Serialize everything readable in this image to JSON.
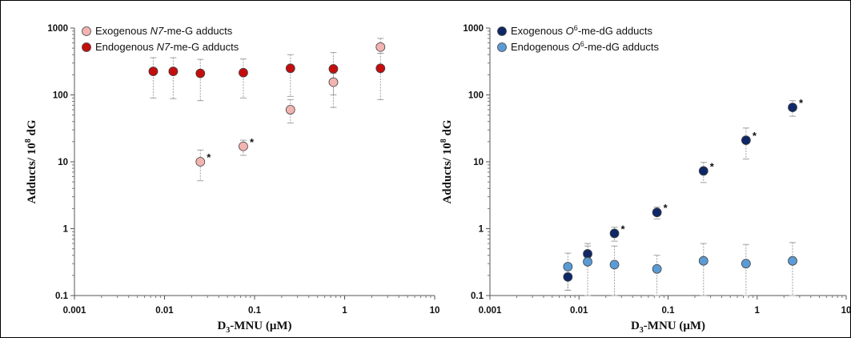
{
  "colors": {
    "exo_n7": "#f2b4b0",
    "endo_n7": "#c40d0d",
    "exo_o6": "#0f2766",
    "endo_o6": "#5b9bd5",
    "errorbar": "#a0a0a0"
  },
  "chart_data": [
    {
      "type": "scatter",
      "scale": {
        "x": "log",
        "y": "log"
      },
      "xlim": [
        0.001,
        10
      ],
      "ylim": [
        0.1,
        1000
      ],
      "x_ticks": [
        "0.001",
        "0.01",
        "0.1",
        "1",
        "10"
      ],
      "y_ticks": [
        "0.1",
        "1",
        "10",
        "100",
        "1000"
      ],
      "xlabel_main": "D",
      "xlabel_sub": "3",
      "xlabel_rest": "-MNU (μM)",
      "ylabel_main": "Adducts/ 10",
      "ylabel_sup": "8",
      "ylabel_rest": " dG",
      "legend_position": "top-left",
      "series": [
        {
          "name_pre": "Exogenous ",
          "name_ital": "N7",
          "name_post": "-me-G adducts",
          "color_key": "exo_n7",
          "points": [
            {
              "x": 0.025,
              "y": 10,
              "err_lo": 5.2,
              "err_hi": 15,
              "star": true
            },
            {
              "x": 0.075,
              "y": 17,
              "err_lo": 12.5,
              "err_hi": 21,
              "star": true
            },
            {
              "x": 0.25,
              "y": 60,
              "err_lo": 38,
              "err_hi": 85,
              "star": false
            },
            {
              "x": 0.75,
              "y": 155,
              "err_lo": 100,
              "err_hi": 210,
              "star": false
            },
            {
              "x": 2.5,
              "y": 520,
              "err_lo": 420,
              "err_hi": 700,
              "star": false
            }
          ]
        },
        {
          "name_pre": "Endogenous ",
          "name_ital": "N7",
          "name_post": "-me-G adducts",
          "color_key": "endo_n7",
          "points": [
            {
              "x": 0.0075,
              "y": 225,
              "err_lo": 90,
              "err_hi": 360,
              "star": false
            },
            {
              "x": 0.0125,
              "y": 225,
              "err_lo": 88,
              "err_hi": 360,
              "star": false
            },
            {
              "x": 0.025,
              "y": 210,
              "err_lo": 82,
              "err_hi": 340,
              "star": false
            },
            {
              "x": 0.075,
              "y": 215,
              "err_lo": 90,
              "err_hi": 345,
              "star": false
            },
            {
              "x": 0.25,
              "y": 250,
              "err_lo": 95,
              "err_hi": 400,
              "star": false
            },
            {
              "x": 0.75,
              "y": 245,
              "err_lo": 65,
              "err_hi": 430,
              "star": false
            },
            {
              "x": 2.5,
              "y": 250,
              "err_lo": 85,
              "err_hi": 420,
              "star": false
            }
          ]
        }
      ]
    },
    {
      "type": "scatter",
      "scale": {
        "x": "log",
        "y": "log"
      },
      "xlim": [
        0.001,
        10
      ],
      "ylim": [
        0.1,
        1000
      ],
      "x_ticks": [
        "0.001",
        "0.01",
        "0.1",
        "1",
        "10"
      ],
      "y_ticks": [
        "0.1",
        "1",
        "10",
        "100",
        "1000"
      ],
      "xlabel_main": "D",
      "xlabel_sub": "3",
      "xlabel_rest": "-MNU (μM)",
      "ylabel_main": "Adducts/ 10",
      "ylabel_sup": "8",
      "ylabel_rest": " dG",
      "legend_position": "top-left",
      "series": [
        {
          "name_pre": "Exogenous ",
          "name_ital": "O",
          "name_sup": "6",
          "name_post": "-me-dG adducts",
          "color_key": "exo_o6",
          "points": [
            {
              "x": 0.0075,
              "y": 0.19,
              "err_lo": 0.12,
              "err_hi": 0.27,
              "star": false
            },
            {
              "x": 0.0125,
              "y": 0.42,
              "err_lo": 0.3,
              "err_hi": 0.55,
              "star": false
            },
            {
              "x": 0.025,
              "y": 0.85,
              "err_lo": 0.65,
              "err_hi": 1.05,
              "star": true
            },
            {
              "x": 0.075,
              "y": 1.75,
              "err_lo": 1.4,
              "err_hi": 2.1,
              "star": true
            },
            {
              "x": 0.25,
              "y": 7.3,
              "err_lo": 4.9,
              "err_hi": 9.8,
              "star": true
            },
            {
              "x": 0.75,
              "y": 21,
              "err_lo": 11,
              "err_hi": 32,
              "star": true
            },
            {
              "x": 2.5,
              "y": 65,
              "err_lo": 48,
              "err_hi": 82,
              "star": true
            }
          ]
        },
        {
          "name_pre": "Endogenous ",
          "name_ital": "O",
          "name_sup": "6",
          "name_post": "-me-dG adducts",
          "color_key": "endo_o6",
          "points": [
            {
              "x": 0.0075,
              "y": 0.27,
              "err_lo": 0.12,
              "err_hi": 0.43,
              "star": false
            },
            {
              "x": 0.0125,
              "y": 0.32,
              "err_lo": 0.1,
              "err_hi": 0.6,
              "star": false
            },
            {
              "x": 0.025,
              "y": 0.29,
              "err_lo": 0.1,
              "err_hi": 0.55,
              "star": false
            },
            {
              "x": 0.075,
              "y": 0.25,
              "err_lo": 0.1,
              "err_hi": 0.4,
              "star": false
            },
            {
              "x": 0.25,
              "y": 0.33,
              "err_lo": 0.1,
              "err_hi": 0.6,
              "star": false
            },
            {
              "x": 0.75,
              "y": 0.3,
              "err_lo": 0.1,
              "err_hi": 0.58,
              "star": false
            },
            {
              "x": 2.5,
              "y": 0.33,
              "err_lo": 0.1,
              "err_hi": 0.62,
              "star": false
            }
          ]
        }
      ]
    }
  ]
}
